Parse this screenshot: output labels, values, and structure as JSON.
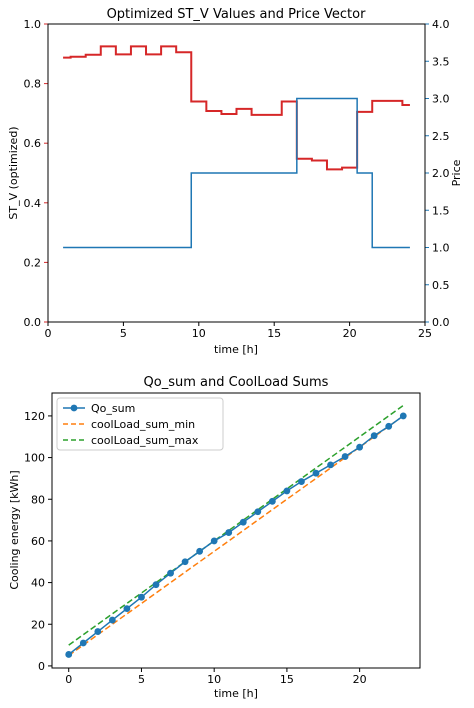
{
  "chart_data": [
    {
      "type": "line",
      "title": "Optimized ST_V Values and Price Vector",
      "xlabel": "time [h]",
      "ylabel": "ST_V (optimized)",
      "ylabel_right": "Price",
      "xlim": [
        0,
        25
      ],
      "ylim": [
        0.0,
        1.0
      ],
      "ylim_right": [
        0.0,
        4.0
      ],
      "x_ticks": [
        0,
        5,
        10,
        15,
        20,
        25
      ],
      "y_ticks": [
        0.0,
        0.2,
        0.4,
        0.6,
        0.8,
        1.0
      ],
      "y_ticks_right": [
        0.0,
        0.5,
        1.0,
        1.5,
        2.0,
        2.5,
        3.0,
        3.5,
        4.0
      ],
      "colors": {
        "left_axis": "#d62728",
        "right_axis": "#1f77b4"
      },
      "series": [
        {
          "name": "ST_V (optimized)",
          "axis": "left",
          "color": "#d62728",
          "step": "mid",
          "x": [
            1,
            2,
            3,
            4,
            5,
            6,
            7,
            8,
            9,
            10,
            11,
            12,
            13,
            14,
            15,
            16,
            17,
            18,
            19,
            20,
            21,
            22,
            23,
            24
          ],
          "values": [
            0.887,
            0.89,
            0.897,
            0.925,
            0.898,
            0.925,
            0.898,
            0.925,
            0.905,
            0.74,
            0.708,
            0.698,
            0.715,
            0.695,
            0.695,
            0.74,
            0.548,
            0.542,
            0.512,
            0.518,
            0.705,
            0.742,
            0.742,
            0.728
          ]
        },
        {
          "name": "Price",
          "axis": "right",
          "color": "#1f77b4",
          "step": "mid",
          "x": [
            1,
            2,
            3,
            4,
            5,
            6,
            7,
            8,
            9,
            10,
            11,
            12,
            13,
            14,
            15,
            16,
            17,
            18,
            19,
            20,
            21,
            22,
            23,
            24
          ],
          "values": [
            1,
            1,
            1,
            1,
            1,
            1,
            1,
            1,
            1,
            2,
            2,
            2,
            2,
            2,
            2,
            2,
            3,
            3,
            3,
            3,
            2,
            1,
            1,
            1
          ]
        }
      ]
    },
    {
      "type": "line",
      "title": "Qo_sum and CoolLoad Sums",
      "xlabel": "time [h]",
      "ylabel": "Cooling energy [kWh]",
      "xlim": [
        -1.15,
        24.15
      ],
      "ylim": [
        -1,
        131
      ],
      "x_ticks": [
        0,
        5,
        10,
        15,
        20
      ],
      "y_ticks": [
        0,
        20,
        40,
        60,
        80,
        100,
        120
      ],
      "legend_position": "top-left",
      "series": [
        {
          "name": "Qo_sum",
          "color": "#1f77b4",
          "style": "solid-marker",
          "x": [
            0,
            1,
            2,
            3,
            4,
            5,
            6,
            7,
            8,
            9,
            10,
            11,
            12,
            13,
            14,
            15,
            16,
            17,
            18,
            19,
            20,
            21,
            22,
            23
          ],
          "values": [
            5.5,
            11,
            16.5,
            22,
            27.5,
            33,
            39,
            44.5,
            50,
            55,
            60,
            64,
            69,
            74,
            79,
            84,
            88.5,
            92.5,
            96.5,
            100.5,
            105,
            110.5,
            115,
            120
          ]
        },
        {
          "name": "coolLoad_sum_min",
          "color": "#ff7f0e",
          "style": "dashed",
          "x": [
            0,
            23
          ],
          "values": [
            5,
            120
          ]
        },
        {
          "name": "coolLoad_sum_max",
          "color": "#2ca02c",
          "style": "dashed",
          "x": [
            0,
            23
          ],
          "values": [
            10,
            125
          ]
        }
      ]
    }
  ]
}
